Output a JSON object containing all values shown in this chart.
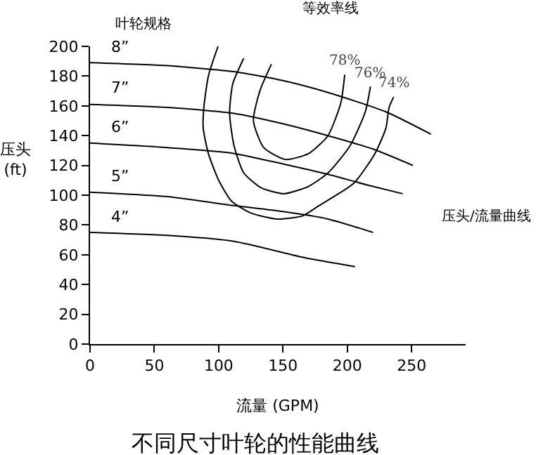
{
  "chart_data": {
    "type": "line",
    "title": "不同尺寸叶轮的性能曲线",
    "xlabel": "流量 (GPM)",
    "ylabel": "压头\n(ft)",
    "annotations": [
      "叶轮规格",
      "等效率线",
      "压头/流量曲线"
    ],
    "xlim": [
      0,
      292
    ],
    "xticks": [
      0,
      50,
      100,
      150,
      200,
      250
    ],
    "ylim": [
      0,
      200
    ],
    "yticks": [
      0,
      20,
      40,
      60,
      80,
      100,
      120,
      140,
      160,
      180,
      200
    ],
    "grid": false,
    "legend": false,
    "marker": "none",
    "line_style": "solid",
    "series": [
      {
        "name": "8”",
        "color": "#000000",
        "x": [
          0,
          60,
          112,
          150,
          185,
          230,
          265
        ],
        "values": [
          189,
          187,
          183,
          177,
          169,
          156,
          141
        ]
      },
      {
        "name": "7”",
        "color": "#000000",
        "x": [
          0,
          60,
          112,
          150,
          185,
          220,
          251
        ],
        "values": [
          161,
          159,
          155,
          148,
          140,
          131,
          120
        ]
      },
      {
        "name": "6”",
        "color": "#000000",
        "x": [
          0,
          60,
          112,
          150,
          185,
          215,
          243
        ],
        "values": [
          135,
          132,
          128,
          121,
          114,
          107,
          101
        ]
      },
      {
        "name": "5”",
        "color": "#000000",
        "x": [
          0,
          60,
          112,
          150,
          185,
          220
        ],
        "values": [
          102,
          99,
          93,
          89,
          84,
          75
        ]
      },
      {
        "name": "4”",
        "color": "#000000",
        "x": [
          0,
          60,
          112,
          167,
          206
        ],
        "values": [
          75,
          73,
          69,
          58,
          52
        ]
      },
      {
        "name": "78%",
        "color": "#000000",
        "x": [
          141,
          132,
          127,
          135,
          152,
          170,
          185,
          195,
          198
        ],
        "values": [
          188,
          170,
          150,
          132,
          124,
          128,
          140,
          162,
          181
        ]
      },
      {
        "name": "76%",
        "color": "#000000",
        "x": [
          119.5,
          111,
          108.5,
          112,
          119.5,
          133,
          150.5,
          170,
          185,
          202,
          214,
          218
        ],
        "values": [
          192,
          175,
          155,
          133,
          115,
          105,
          101,
          106,
          115,
          133,
          156,
          173
        ]
      },
      {
        "name": "74%",
        "color": "#000000",
        "x": [
          99.5,
          92,
          88.5,
          88,
          92,
          100,
          110,
          125,
          145,
          165,
          178,
          205,
          221.5,
          230,
          232.5,
          236
        ],
        "values": [
          200,
          180,
          159,
          145,
          128,
          110,
          96,
          88,
          84,
          86,
          93,
          108,
          128,
          145,
          159,
          166
        ]
      }
    ]
  }
}
